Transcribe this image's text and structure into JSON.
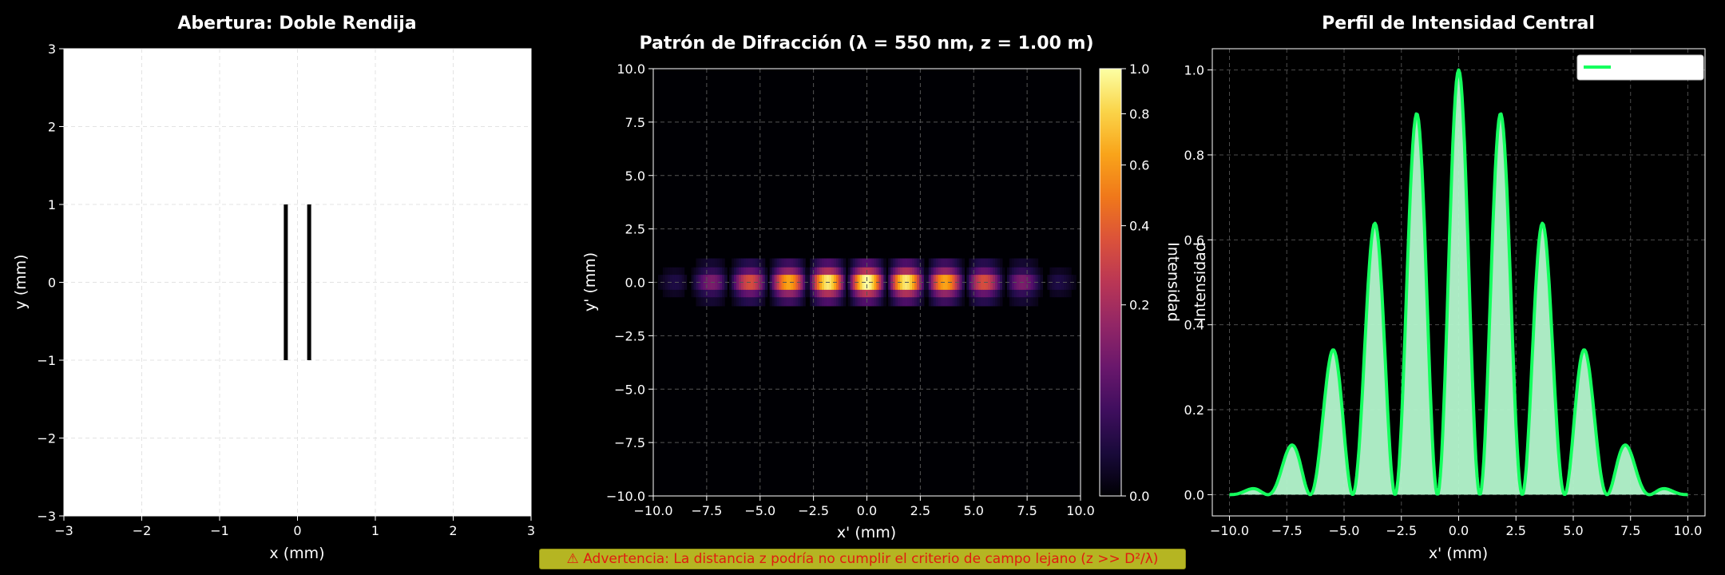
{
  "figure": {
    "background": "#000000",
    "warning_icon": "⚠",
    "warning_text": "Advertencia: La distancia z podría no cumplir el criterio de campo lejano (z >> D²/λ)"
  },
  "chart_data": [
    {
      "type": "scatter",
      "title": "Abertura: Doble Rendija",
      "xlabel": "x (mm)",
      "ylabel": "y (mm)",
      "xlim": [
        -3,
        3
      ],
      "ylim": [
        -3,
        3
      ],
      "xticks": [
        "−3",
        "−2",
        "−1",
        "0",
        "1",
        "2",
        "3"
      ],
      "yticks": [
        "−3",
        "−2",
        "−1",
        "0",
        "1",
        "2",
        "3"
      ],
      "grid": true,
      "slits": [
        {
          "x": -0.15,
          "y_from": -1,
          "y_to": 1
        },
        {
          "x": 0.15,
          "y_from": -1,
          "y_to": 1
        }
      ],
      "colors": {
        "background": "#ffffff",
        "slit": "#000000"
      }
    },
    {
      "type": "heatmap",
      "title": "Patrón de Difracción (λ = 550 nm, z = 1.00 m)",
      "xlabel": "x' (mm)",
      "ylabel": "y' (mm)",
      "xlim": [
        -10,
        10
      ],
      "ylim": [
        -10,
        10
      ],
      "xticks": [
        "−10.0",
        "−7.5",
        "−5.0",
        "−2.5",
        "0.0",
        "2.5",
        "5.0",
        "7.5",
        "10.0"
      ],
      "yticks": [
        "−10.0",
        "−7.5",
        "−5.0",
        "−2.5",
        "0.0",
        "2.5",
        "5.0",
        "7.5",
        "10.0"
      ],
      "colormap": "inferno",
      "colorbar_label": "Intensidad",
      "colorbar_ticks": [
        "0.0",
        "0.2",
        "0.4",
        "0.6",
        "0.8",
        "1.0"
      ],
      "colorbar_range": [
        0,
        1
      ],
      "colorbar_gamma": 0.5,
      "fringe_row_y": 0,
      "fringe_halfwidth_y": 0.35,
      "fringe_period_x": 1.85,
      "envelope_zero_x": 10.2,
      "grid": true
    },
    {
      "type": "area",
      "title": "Perfil de Intensidad Central",
      "xlabel": "x' (mm)",
      "ylabel": "Intensidad",
      "xlim": [
        -10.75,
        10.75
      ],
      "ylim": [
        -0.05,
        1.05
      ],
      "xticks": [
        "−10.0",
        "−7.5",
        "−5.0",
        "−2.5",
        "0.0",
        "2.5",
        "5.0",
        "7.5",
        "10.0"
      ],
      "yticks": [
        "0.0",
        "0.2",
        "0.4",
        "0.6",
        "0.8",
        "1.0"
      ],
      "legend": {
        "placement": "top-right",
        "label": ""
      },
      "grid": true,
      "peaks": [
        {
          "x": -9.3,
          "y": 0.035
        },
        {
          "x": -7.5,
          "y": 0.165
        },
        {
          "x": -5.65,
          "y": 0.395
        },
        {
          "x": -3.75,
          "y": 0.68
        },
        {
          "x": -1.85,
          "y": 0.89
        },
        {
          "x": 0,
          "y": 1.0
        },
        {
          "x": 1.85,
          "y": 0.89
        },
        {
          "x": 3.75,
          "y": 0.68
        },
        {
          "x": 5.65,
          "y": 0.395
        },
        {
          "x": 7.5,
          "y": 0.165
        },
        {
          "x": 9.3,
          "y": 0.035
        }
      ],
      "colors": {
        "line": "#15ff5e",
        "fill": "#b4f7cd"
      }
    }
  ]
}
